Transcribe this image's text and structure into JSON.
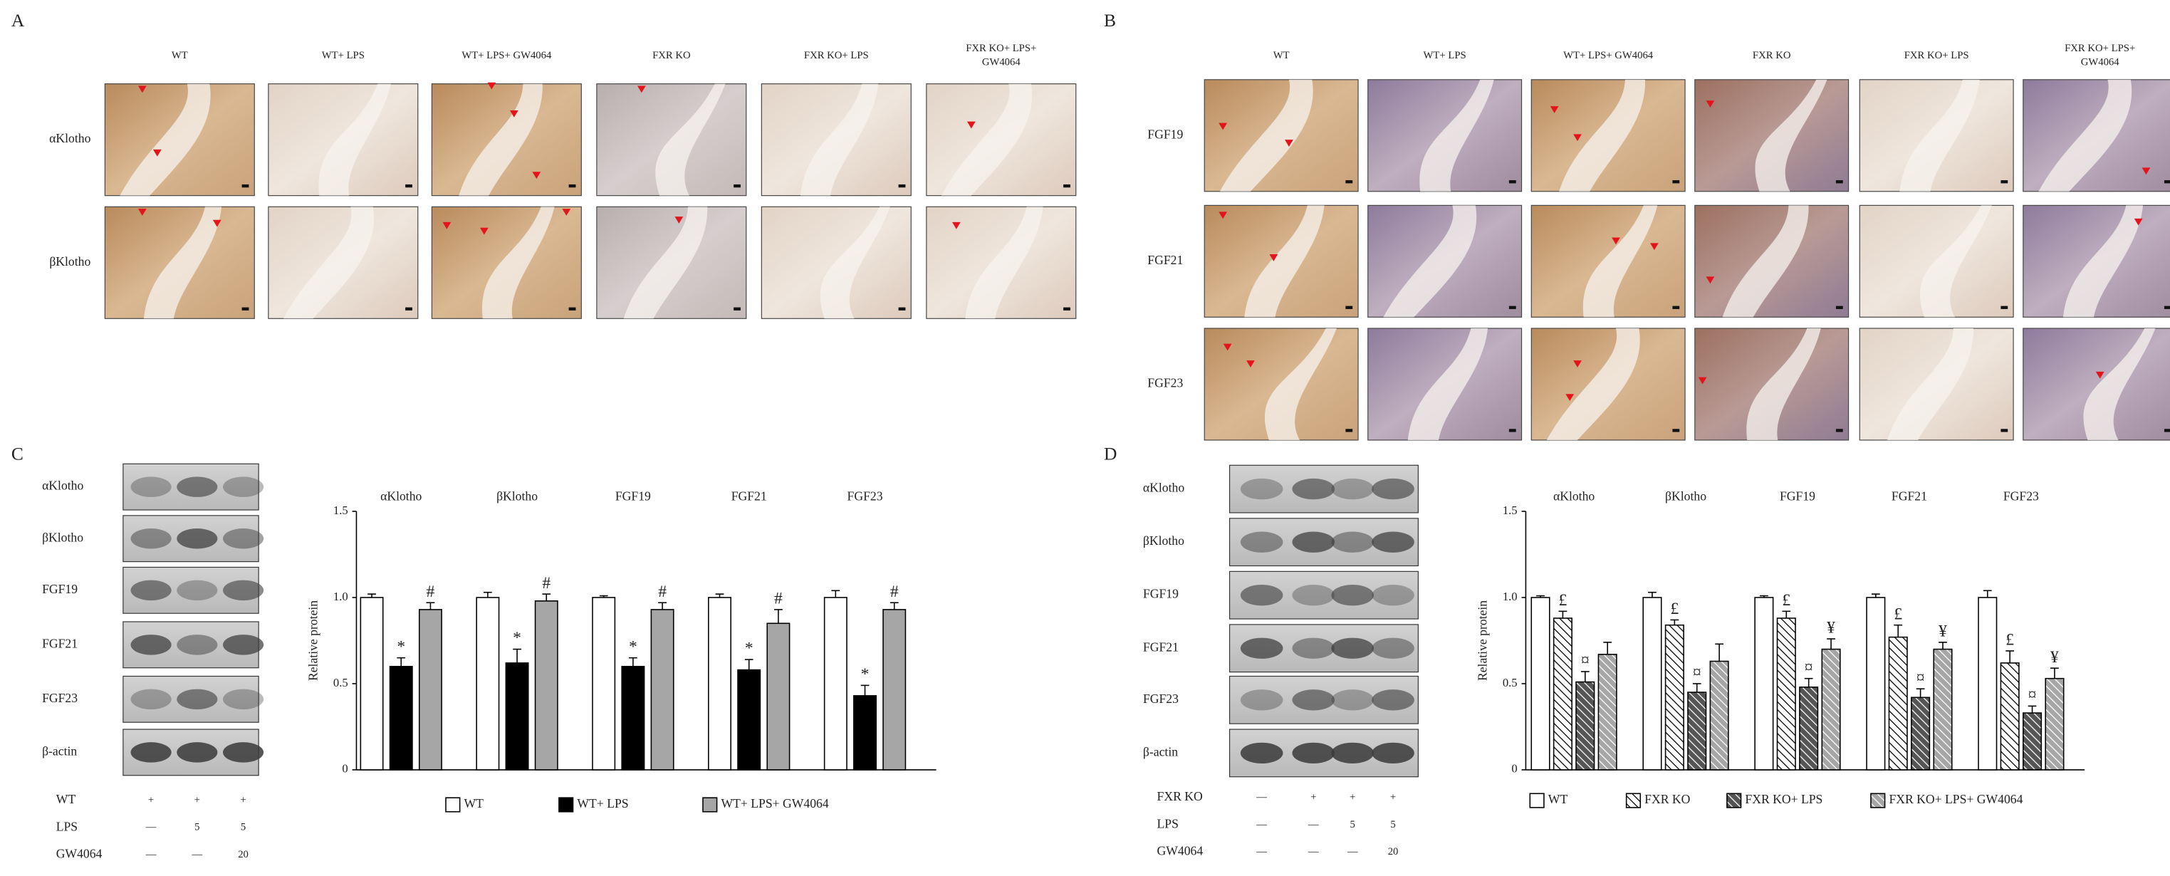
{
  "panel_a": {
    "label": "A",
    "columns": [
      "WT",
      "WT+ LPS",
      "WT+ LPS+ GW4064",
      "FXR KO",
      "FXR KO+ LPS",
      [
        "FXR KO+ LPS+",
        "GW4064"
      ]
    ],
    "rows": [
      "αKlotho",
      "βKlotho"
    ]
  },
  "panel_b": {
    "label": "B",
    "columns": [
      "WT",
      "WT+ LPS",
      "WT+ LPS+ GW4064",
      "FXR KO",
      "FXR KO+ LPS",
      [
        "FXR KO+ LPS+",
        "GW4064"
      ]
    ],
    "rows": [
      "FGF19",
      "FGF21",
      "FGF23"
    ]
  },
  "panel_c_blot": {
    "label": "C",
    "bands": [
      "αKlotho",
      "βKlotho",
      "FGF19",
      "FGF21",
      "FGF23",
      "β-actin"
    ],
    "conditions": [
      {
        "name": "WT",
        "lanes": [
          "+",
          "+",
          "+"
        ]
      },
      {
        "name": "LPS",
        "lanes": [
          "—",
          "5",
          "5"
        ]
      },
      {
        "name": "GW4064",
        "lanes": [
          "—",
          "—",
          "20"
        ]
      }
    ]
  },
  "panel_d_blot": {
    "label": "D",
    "bands": [
      "αKlotho",
      "βKlotho",
      "FGF19",
      "FGF21",
      "FGF23",
      "β-actin"
    ],
    "conditions": [
      {
        "name": "FXR KO",
        "lanes": [
          "—",
          "+",
          "+",
          "+"
        ]
      },
      {
        "name": "LPS",
        "lanes": [
          "—",
          "—",
          "5",
          "5"
        ]
      },
      {
        "name": "GW4064",
        "lanes": [
          "—",
          "—",
          "—",
          "20"
        ]
      }
    ]
  },
  "chart_data": [
    {
      "type": "bar",
      "ylabel": "Relative protein",
      "categories": [
        "αKlotho",
        "βKlotho",
        "FGF19",
        "FGF21",
        "FGF23"
      ],
      "ylim": [
        0,
        1.5
      ],
      "yticks": [
        0,
        0.5,
        {
          "value": 1,
          "label": "1.0"
        },
        1.5
      ],
      "series": [
        {
          "name": "WT",
          "color": "#ffffff",
          "hatch": false,
          "values": [
            1.0,
            1.0,
            1.0,
            1.0,
            1.0
          ],
          "errors": [
            0.02,
            0.03,
            0.01,
            0.02,
            0.04
          ],
          "annotations": [
            null,
            null,
            null,
            null,
            null
          ]
        },
        {
          "name": "WT+ LPS",
          "color": "#000000",
          "hatch": false,
          "values": [
            0.6,
            0.62,
            0.6,
            0.58,
            0.43
          ],
          "errors": [
            0.05,
            0.08,
            0.05,
            0.06,
            0.06
          ],
          "annotations": [
            "*",
            "*",
            "*",
            "*",
            "*"
          ]
        },
        {
          "name": "WT+ LPS+ GW4064",
          "color": "#a6a6a6",
          "hatch": false,
          "values": [
            0.93,
            0.98,
            0.93,
            0.85,
            0.93
          ],
          "errors": [
            0.04,
            0.04,
            0.04,
            0.08,
            0.04
          ],
          "annotations": [
            "#",
            "#",
            "#",
            "#",
            "#"
          ]
        }
      ]
    },
    {
      "type": "bar",
      "ylabel": "Relative protein",
      "categories": [
        "αKlotho",
        "βKlotho",
        "FGF19",
        "FGF21",
        "FGF23"
      ],
      "ylim": [
        0,
        1.5
      ],
      "yticks": [
        0,
        0.5,
        {
          "value": 1,
          "label": "1.0"
        },
        1.5
      ],
      "series": [
        {
          "name": "WT",
          "color": "#ffffff",
          "hatch": false,
          "values": [
            1.0,
            1.0,
            1.0,
            1.0,
            1.0
          ],
          "errors": [
            0.01,
            0.03,
            0.01,
            0.02,
            0.04
          ],
          "annotations": [
            null,
            null,
            null,
            null,
            null
          ]
        },
        {
          "name": "FXR KO",
          "color": "#ffffff",
          "hatch": true,
          "values": [
            0.88,
            0.84,
            0.88,
            0.77,
            0.62
          ],
          "errors": [
            0.04,
            0.03,
            0.04,
            0.07,
            0.07
          ],
          "annotations": [
            "£",
            "£",
            "£",
            "£",
            "£"
          ]
        },
        {
          "name": "FXR KO+ LPS",
          "color": "#555555",
          "hatch": true,
          "values": [
            0.51,
            0.45,
            0.48,
            0.42,
            0.33
          ],
          "errors": [
            0.06,
            0.05,
            0.05,
            0.05,
            0.04
          ],
          "annotations": [
            "¤",
            "¤",
            "¤",
            "¤",
            "¤"
          ]
        },
        {
          "name": "FXR KO+ LPS+ GW4064",
          "color": "#a6a6a6",
          "hatch": true,
          "values": [
            0.67,
            0.63,
            0.7,
            0.7,
            0.53
          ],
          "errors": [
            0.07,
            0.1,
            0.06,
            0.04,
            0.06
          ],
          "annotations": [
            null,
            null,
            "¥",
            "¥",
            "¥"
          ]
        }
      ]
    }
  ]
}
